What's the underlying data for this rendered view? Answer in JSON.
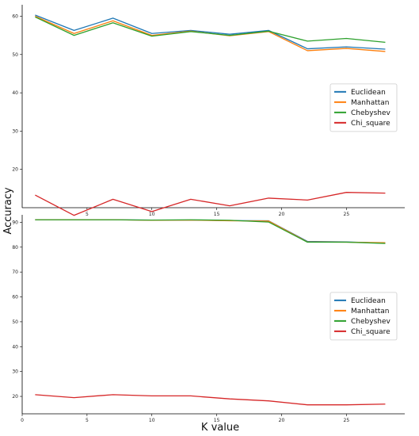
{
  "figure": {
    "xlabel": "K value",
    "ylabel": "Accuracy"
  },
  "colors": {
    "Euclidean": "#1f77b4",
    "Manhattan": "#ff7f0e",
    "Chebyshev": "#2ca02c",
    "Chi_square": "#d62728"
  },
  "chart_data": [
    {
      "type": "line",
      "x": [
        1,
        4,
        7,
        10,
        13,
        16,
        19,
        22,
        25,
        28
      ],
      "xticks": [
        5,
        10,
        15,
        20,
        25
      ],
      "yticks": [
        20,
        30,
        40,
        50,
        60
      ],
      "xlim": [
        0,
        29.5
      ],
      "ylim": [
        10,
        63
      ],
      "legend": "center-right",
      "grid": false,
      "series": [
        {
          "name": "Euclidean",
          "values": [
            60.3,
            56.3,
            59.5,
            55.5,
            56.3,
            55.3,
            56.3,
            51.5,
            52.0,
            51.4
          ]
        },
        {
          "name": "Manhattan",
          "values": [
            60.0,
            55.5,
            58.8,
            55.0,
            56.1,
            54.9,
            56.0,
            51.0,
            51.6,
            50.8
          ]
        },
        {
          "name": "Chebyshev",
          "values": [
            59.8,
            55.0,
            58.3,
            54.8,
            56.0,
            55.0,
            56.1,
            53.5,
            54.2,
            53.2
          ]
        },
        {
          "name": "Chi_square",
          "values": [
            13.3,
            8.0,
            12.2,
            9.0,
            12.2,
            10.5,
            12.5,
            12.0,
            14.0,
            13.8
          ]
        }
      ]
    },
    {
      "type": "line",
      "x": [
        1,
        4,
        7,
        10,
        13,
        16,
        19,
        22,
        25,
        28
      ],
      "xticks": [
        0,
        5,
        10,
        15,
        20,
        25
      ],
      "yticks": [
        20,
        30,
        40,
        50,
        60,
        70,
        80,
        90
      ],
      "xlim": [
        0,
        29.5
      ],
      "ylim": [
        13,
        93
      ],
      "legend": "center-right",
      "grid": false,
      "series": [
        {
          "name": "Euclidean",
          "values": [
            91.0,
            91.0,
            91.0,
            90.9,
            90.9,
            90.7,
            90.6,
            82.3,
            82.1,
            81.6
          ]
        },
        {
          "name": "Manhattan",
          "values": [
            91.0,
            91.0,
            91.0,
            90.8,
            90.9,
            90.6,
            90.5,
            82.1,
            82.0,
            81.8
          ]
        },
        {
          "name": "Chebyshev",
          "values": [
            91.0,
            91.0,
            91.0,
            90.9,
            91.0,
            90.8,
            90.1,
            82.0,
            82.0,
            81.5
          ]
        },
        {
          "name": "Chi_square",
          "values": [
            20.7,
            19.5,
            20.7,
            20.2,
            20.2,
            19.0,
            18.2,
            16.6,
            16.6,
            16.9
          ]
        }
      ]
    }
  ]
}
